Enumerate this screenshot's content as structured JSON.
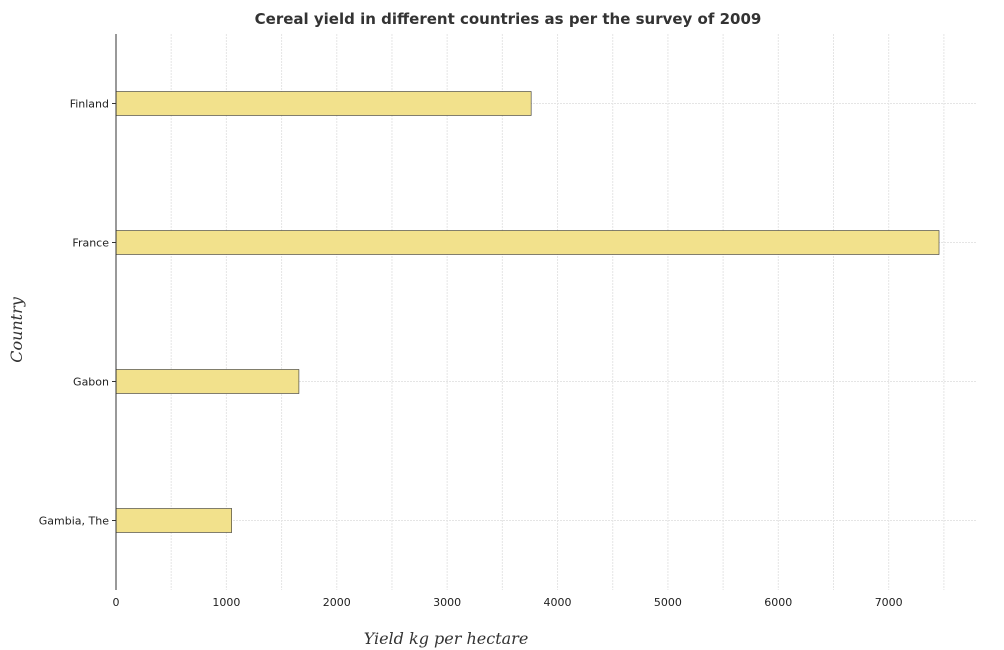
{
  "chart_data": {
    "type": "bar",
    "orientation": "horizontal",
    "title": "Cereal yield in different countries as per the survey of 2009",
    "xlabel": "Yield kg per hectare",
    "ylabel": "Country",
    "categories": [
      "Finland",
      "France",
      "Gabon",
      "Gambia, The"
    ],
    "values": [
      3761,
      7456,
      1657,
      1048
    ],
    "xlim": [
      0,
      7800
    ],
    "xticks": [
      0,
      1000,
      2000,
      3000,
      4000,
      5000,
      6000,
      7000
    ],
    "xtick_labels": [
      "0",
      "1000",
      "2000",
      "3000",
      "4000",
      "5000",
      "6000",
      "7000"
    ],
    "grid": true,
    "bar_color": "#f2e18c"
  }
}
